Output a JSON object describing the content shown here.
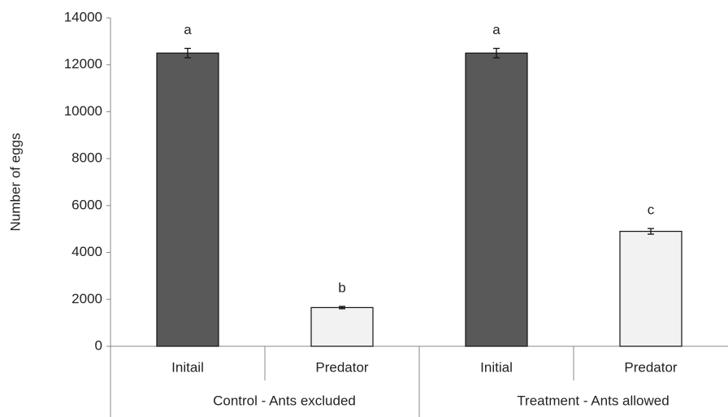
{
  "chart_data": {
    "type": "bar",
    "y_label": "Number of eggs",
    "categories": [
      "Initail",
      "Predator",
      "Initial",
      "Predator"
    ],
    "groups": [
      "Control - Ants excluded",
      "Treatment - Ants allowed"
    ],
    "values": [
      12500,
      1650,
      12500,
      4900
    ],
    "errors": [
      200,
      50,
      200,
      120
    ],
    "annotations": [
      "a",
      "b",
      "a",
      "c"
    ],
    "colors": [
      "#595959",
      "#f2f2f2",
      "#595959",
      "#f2f2f2"
    ],
    "ylim": [
      0,
      14000
    ],
    "yticks": [
      0,
      2000,
      4000,
      6000,
      8000,
      10000,
      12000,
      14000
    ]
  }
}
